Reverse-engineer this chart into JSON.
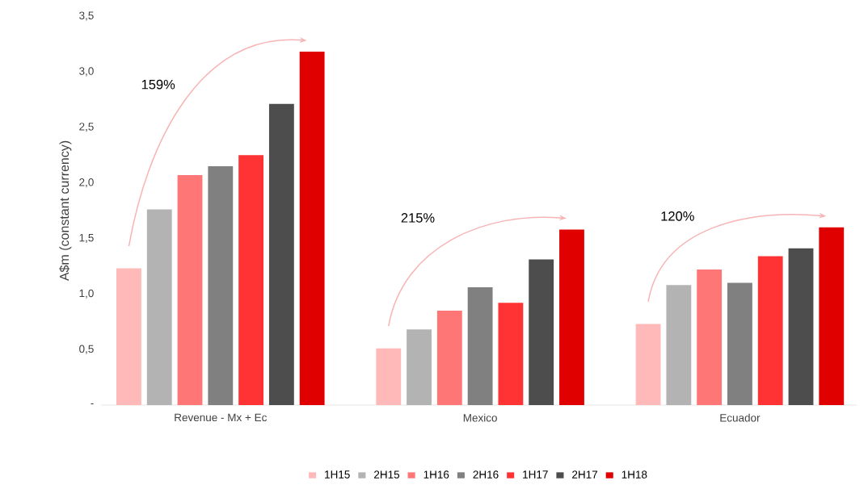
{
  "chart_data": {
    "type": "bar",
    "ylabel": "A$m (constant currency)",
    "categories": [
      "Revenue - Mx + Ec",
      "Mexico",
      "Ecuador"
    ],
    "series": [
      {
        "name": "1H15",
        "color": "#ffb9b9",
        "values": [
          1.23,
          0.51,
          0.73
        ]
      },
      {
        "name": "2H15",
        "color": "#b3b3b3",
        "values": [
          1.76,
          0.68,
          1.08
        ]
      },
      {
        "name": "1H16",
        "color": "#ff7676",
        "values": [
          2.07,
          0.85,
          1.22
        ]
      },
      {
        "name": "2H16",
        "color": "#808080",
        "values": [
          2.15,
          1.06,
          1.1
        ]
      },
      {
        "name": "1H17",
        "color": "#ff3333",
        "values": [
          2.25,
          0.92,
          1.34
        ]
      },
      {
        "name": "2H17",
        "color": "#4d4d4d",
        "values": [
          2.71,
          1.31,
          1.41
        ]
      },
      {
        "name": "1H18",
        "color": "#e00000",
        "values": [
          3.18,
          1.58,
          1.6
        ]
      }
    ],
    "ylim": [
      0,
      3.5
    ],
    "yticks": [
      {
        "value": 0,
        "label": "-"
      },
      {
        "value": 0.5,
        "label": "0,5"
      },
      {
        "value": 1,
        "label": "1,0"
      },
      {
        "value": 1.5,
        "label": "1,5"
      },
      {
        "value": 2,
        "label": "2,0"
      },
      {
        "value": 2.5,
        "label": "2,5"
      },
      {
        "value": 3,
        "label": "3,0"
      },
      {
        "value": 3.5,
        "label": "3,5"
      }
    ],
    "annotations": [
      "159%",
      "215%",
      "120%"
    ],
    "legend": "bottom",
    "grid": false
  }
}
